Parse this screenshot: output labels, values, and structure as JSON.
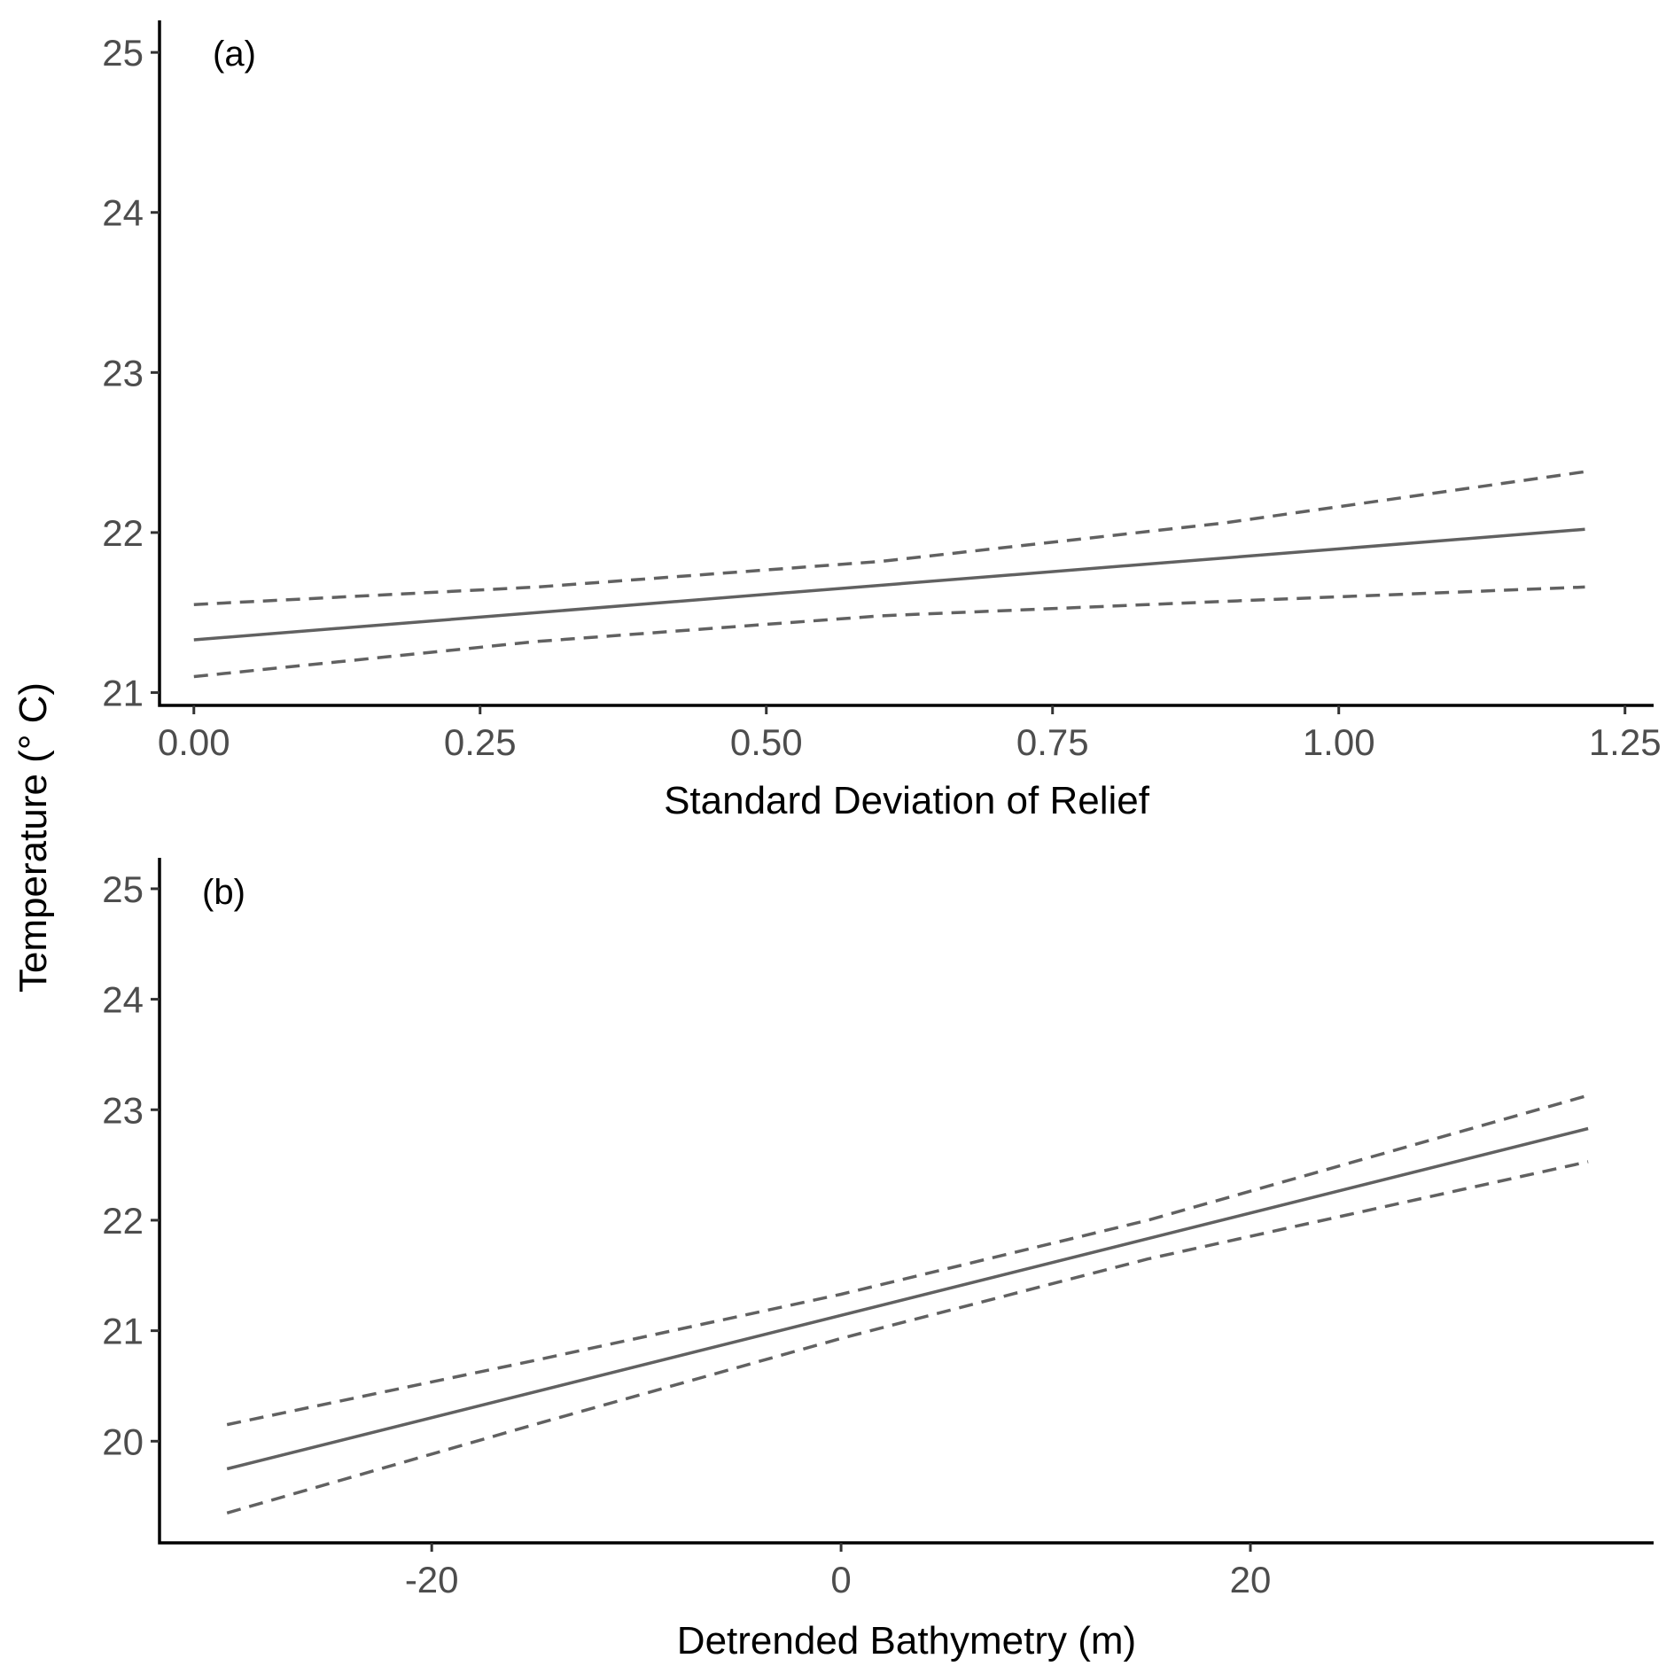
{
  "ylabel": "Temperature (° C)",
  "chart_data": [
    {
      "type": "line",
      "panel_label": "(a)",
      "xlabel": "Standard Deviation of Relief",
      "xlim": [
        -0.03,
        1.275
      ],
      "ylim": [
        20.92,
        25.2
      ],
      "x_ticks": [
        0.0,
        0.25,
        0.5,
        0.75,
        1.0,
        1.25
      ],
      "x_tick_labels": [
        "0.00",
        "0.25",
        "0.50",
        "0.75",
        "1.00",
        "1.25"
      ],
      "y_ticks": [
        21,
        22,
        23,
        24,
        25
      ],
      "y_tick_labels": [
        "21",
        "22",
        "23",
        "24",
        "25"
      ],
      "grid": false,
      "legend": "none",
      "series": [
        {
          "style": "solid",
          "color": "#616161",
          "x": [
            0.0,
            1.215
          ],
          "y": [
            21.33,
            22.02
          ]
        },
        {
          "style": "dashed",
          "color": "#616161",
          "x": [
            0.0,
            0.3,
            0.6,
            0.9,
            1.215
          ],
          "y": [
            21.55,
            21.66,
            21.82,
            22.06,
            22.38
          ]
        },
        {
          "style": "dashed",
          "color": "#616161",
          "x": [
            0.0,
            0.3,
            0.6,
            0.9,
            1.215
          ],
          "y": [
            21.1,
            21.32,
            21.48,
            21.57,
            21.66
          ]
        }
      ]
    },
    {
      "type": "line",
      "panel_label": "(b)",
      "xlabel": "Detrended Bathymetry (m)",
      "xlim": [
        -33.3,
        39.7
      ],
      "ylim": [
        19.08,
        25.28
      ],
      "x_ticks": [
        -20,
        0,
        20
      ],
      "x_tick_labels": [
        "-20",
        "0",
        "20"
      ],
      "y_ticks": [
        20,
        21,
        22,
        23,
        24,
        25
      ],
      "y_tick_labels": [
        "20",
        "21",
        "22",
        "23",
        "24",
        "25"
      ],
      "grid": false,
      "legend": "none",
      "series": [
        {
          "style": "solid",
          "color": "#616161",
          "x": [
            -30,
            36.5
          ],
          "y": [
            19.75,
            22.83
          ]
        },
        {
          "style": "dashed",
          "color": "#616161",
          "x": [
            -30,
            -15,
            0,
            15,
            36.5
          ],
          "y": [
            20.15,
            20.73,
            21.33,
            22.0,
            23.13
          ]
        },
        {
          "style": "dashed",
          "color": "#616161",
          "x": [
            -30,
            -15,
            0,
            15,
            36.5
          ],
          "y": [
            19.35,
            20.15,
            20.93,
            21.65,
            22.53
          ]
        }
      ]
    }
  ]
}
